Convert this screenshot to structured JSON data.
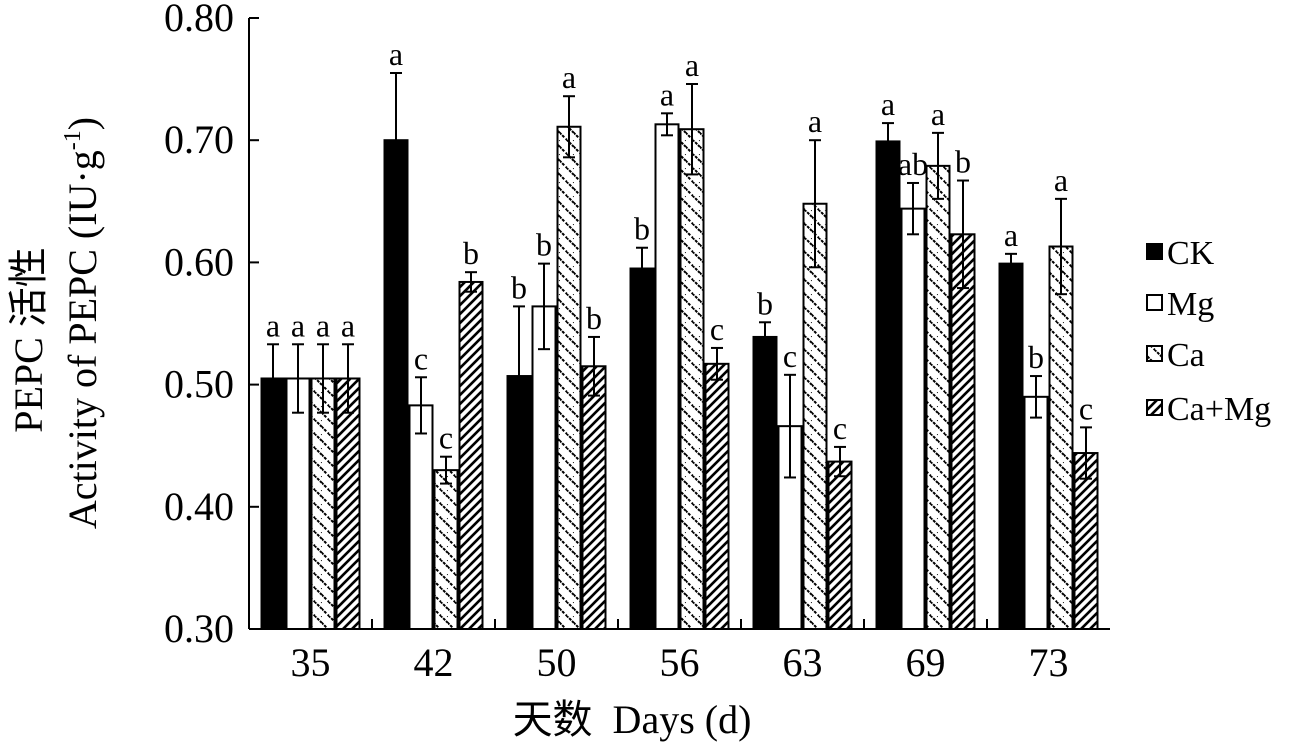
{
  "chart_data": {
    "type": "bar",
    "ylabel_cn": "PEPC 活性",
    "ylabel_en": "Activity of PEPC (IU·g",
    "ylabel_sup": "-1",
    "ylabel_close": ")",
    "xlabel": "天数  Days (d)",
    "ylim": [
      0.3,
      0.8
    ],
    "yticks": [
      "0.30",
      "0.40",
      "0.50",
      "0.60",
      "0.70",
      "0.80"
    ],
    "categories": [
      "35",
      "42",
      "50",
      "56",
      "63",
      "69",
      "73"
    ],
    "series": [
      {
        "name": "CK",
        "values": [
          0.505,
          0.7,
          0.507,
          0.595,
          0.539,
          0.699,
          0.599
        ],
        "errors": [
          0.028,
          0.055,
          0.057,
          0.017,
          0.012,
          0.015,
          0.008
        ],
        "letters": [
          "a",
          "a",
          "b",
          "b",
          "b",
          "a",
          "a"
        ]
      },
      {
        "name": "Mg",
        "values": [
          0.505,
          0.483,
          0.564,
          0.713,
          0.466,
          0.644,
          0.49
        ],
        "errors": [
          0.028,
          0.023,
          0.035,
          0.009,
          0.042,
          0.021,
          0.017
        ],
        "letters": [
          "a",
          "c",
          "b",
          "a",
          "c",
          "ab",
          "b"
        ]
      },
      {
        "name": "Ca",
        "values": [
          0.505,
          0.43,
          0.711,
          0.709,
          0.648,
          0.679,
          0.613
        ],
        "errors": [
          0.028,
          0.011,
          0.025,
          0.037,
          0.052,
          0.027,
          0.039
        ],
        "letters": [
          "a",
          "c",
          "a",
          "a",
          "a",
          "a",
          "a"
        ]
      },
      {
        "name": "Ca+Mg",
        "values": [
          0.505,
          0.584,
          0.515,
          0.517,
          0.437,
          0.623,
          0.444
        ],
        "errors": [
          0.028,
          0.008,
          0.024,
          0.013,
          0.012,
          0.044,
          0.021
        ],
        "letters": [
          "a",
          "b",
          "b",
          "c",
          "c",
          "b",
          "c"
        ]
      }
    ],
    "legend_position": "right",
    "grid": false
  }
}
